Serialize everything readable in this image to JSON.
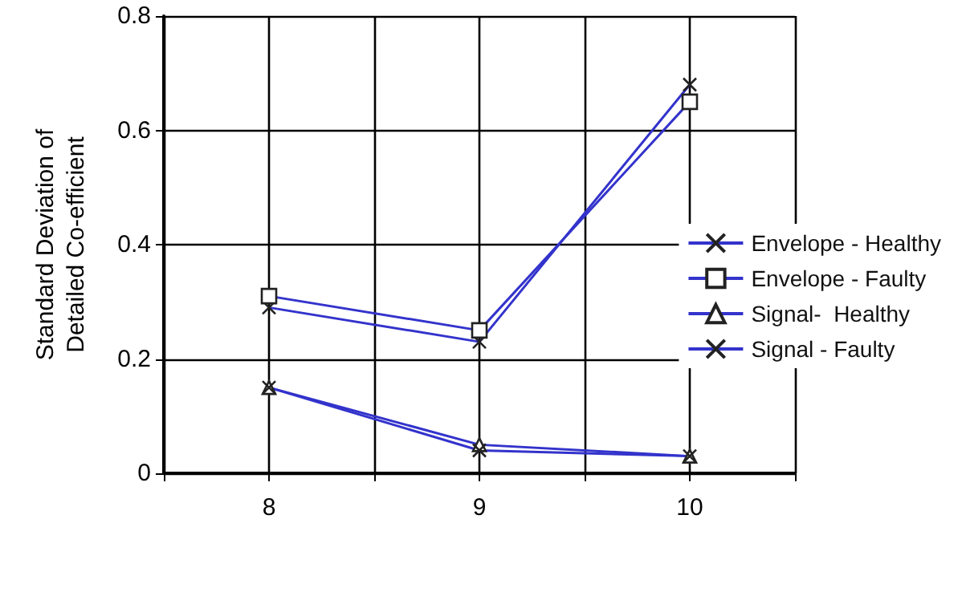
{
  "chart_data": {
    "type": "line",
    "ylabel": "Standard Deviation of\nDetailed Co-efficient",
    "x": [
      8,
      9,
      10
    ],
    "series": [
      {
        "name": "Envelope - Healthy",
        "color": "#3333cc",
        "marker": "cross",
        "values": [
          0.29,
          0.23,
          0.68
        ]
      },
      {
        "name": "Envelope - Faulty",
        "color": "#3333cc",
        "marker": "square",
        "values": [
          0.31,
          0.25,
          0.65
        ]
      },
      {
        "name": "Signal-  Healthy",
        "color": "#3333cc",
        "marker": "triangle",
        "values": [
          0.15,
          0.05,
          0.03
        ]
      },
      {
        "name": "Signal - Faulty",
        "color": "#3333cc",
        "marker": "cross",
        "values": [
          0.15,
          0.04,
          0.03
        ]
      }
    ],
    "xlim": [
      7.5,
      10.5
    ],
    "xticks": [
      {
        "value": 7.5,
        "label": null
      },
      8,
      {
        "value": 8.5,
        "label": null
      },
      9,
      {
        "value": 9.5,
        "label": null
      },
      10,
      {
        "value": 10.5,
        "label": null
      }
    ],
    "ylim": [
      0,
      0.8
    ],
    "yticks": [
      0,
      0.2,
      0.4,
      0.6,
      0.8
    ],
    "grid": true,
    "legend": "right"
  }
}
